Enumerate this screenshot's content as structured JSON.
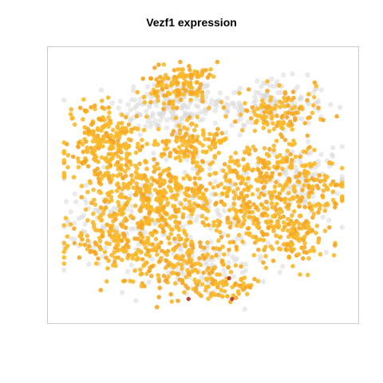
{
  "chart_data": {
    "type": "scatter",
    "title": "Vezf1 expression",
    "xlabel": "",
    "ylabel": "",
    "xlim": [
      0,
      100
    ],
    "ylim": [
      0,
      100
    ],
    "axes_visible": false,
    "grid": false,
    "legend": "none",
    "colors": {
      "background_cells": "#d9d9d9",
      "expressing_cells": "#fbb829",
      "expressing_cells_alt": "#f5a623",
      "high_expression": "#b3301d",
      "frame": "#cccccc"
    },
    "series": [
      {
        "role": "non-expressing",
        "clusters": [
          {
            "center": [
              38,
              80
            ],
            "spread": [
              9,
              6
            ],
            "n": 160
          },
          {
            "center": [
              71,
              81
            ],
            "spread": [
              11,
              5
            ],
            "n": 150
          },
          {
            "center": [
              60,
              45
            ],
            "spread": [
              18,
              10
            ],
            "n": 150
          },
          {
            "center": [
              22,
              36
            ],
            "spread": [
              12,
              10
            ],
            "n": 130
          },
          {
            "center": [
              86,
              53
            ],
            "spread": [
              6,
              6
            ],
            "n": 70
          },
          {
            "center": [
              48,
              18
            ],
            "spread": [
              12,
              6
            ],
            "n": 90
          }
        ]
      },
      {
        "role": "expressing",
        "clusters": [
          {
            "center": [
              16,
              65
            ],
            "spread": [
              7,
              9
            ],
            "n": 260
          },
          {
            "center": [
              40,
              88
            ],
            "spread": [
              6,
              4
            ],
            "n": 110
          },
          {
            "center": [
              47,
              67
            ],
            "spread": [
              6,
              4
            ],
            "n": 110
          },
          {
            "center": [
              75,
              77
            ],
            "spread": [
              8,
              5
            ],
            "n": 120
          },
          {
            "center": [
              73,
              57
            ],
            "spread": [
              9,
              5
            ],
            "n": 120
          },
          {
            "center": [
              88,
              48
            ],
            "spread": [
              6,
              5
            ],
            "n": 80
          },
          {
            "center": [
              35,
              45
            ],
            "spread": [
              12,
              9
            ],
            "n": 380
          },
          {
            "center": [
              67,
              40
            ],
            "spread": [
              10,
              8
            ],
            "n": 220
          },
          {
            "center": [
              83,
              30
            ],
            "spread": [
              6,
              6
            ],
            "n": 100
          },
          {
            "center": [
              22,
              28
            ],
            "spread": [
              9,
              7
            ],
            "n": 180
          },
          {
            "center": [
              45,
              18
            ],
            "spread": [
              9,
              5
            ],
            "n": 130
          },
          {
            "center": [
              57,
              10
            ],
            "spread": [
              6,
              3
            ],
            "n": 60
          },
          {
            "center": [
              48,
              93
            ],
            "spread": [
              3,
              2
            ],
            "n": 30
          }
        ]
      },
      {
        "role": "high-expression",
        "points": [
          [
            59,
            14
          ],
          [
            45,
            6
          ],
          [
            60,
            6
          ]
        ]
      }
    ]
  }
}
